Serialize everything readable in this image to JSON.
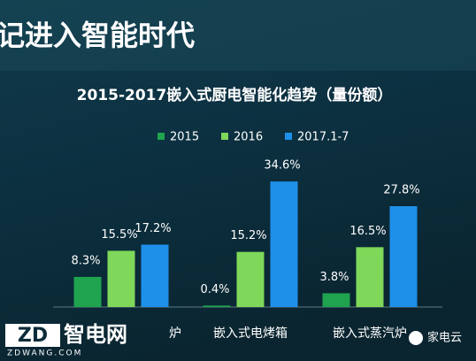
{
  "slide_heading": "记进入智能时代",
  "chart_data": {
    "type": "bar",
    "title": "2015-2017嵌入式厨电智能化趋势（量份额）",
    "categories": [
      "炉",
      "嵌入式电烤箱",
      "嵌入式蒸汽炉"
    ],
    "series": [
      {
        "name": "2015",
        "color": "#1fa34f",
        "values": [
          8.3,
          0.4,
          3.8
        ],
        "value_labels": [
          "8.3%",
          "0.4%",
          "3.8%"
        ]
      },
      {
        "name": "2016",
        "color": "#7fd85a",
        "values": [
          15.5,
          15.2,
          16.5
        ],
        "value_labels": [
          "15.5%",
          "15.2%",
          "16.5%"
        ]
      },
      {
        "name": "2017.1-7",
        "color": "#1e90ea",
        "values": [
          17.2,
          34.6,
          27.8
        ],
        "value_labels": [
          "17.2%",
          "34.6%",
          "27.8%"
        ]
      }
    ],
    "legend": "top"
  },
  "watermarks": {
    "logo": "ZD",
    "site": "智电网",
    "url": "ZDWANG.COM",
    "brand": "家电云"
  }
}
